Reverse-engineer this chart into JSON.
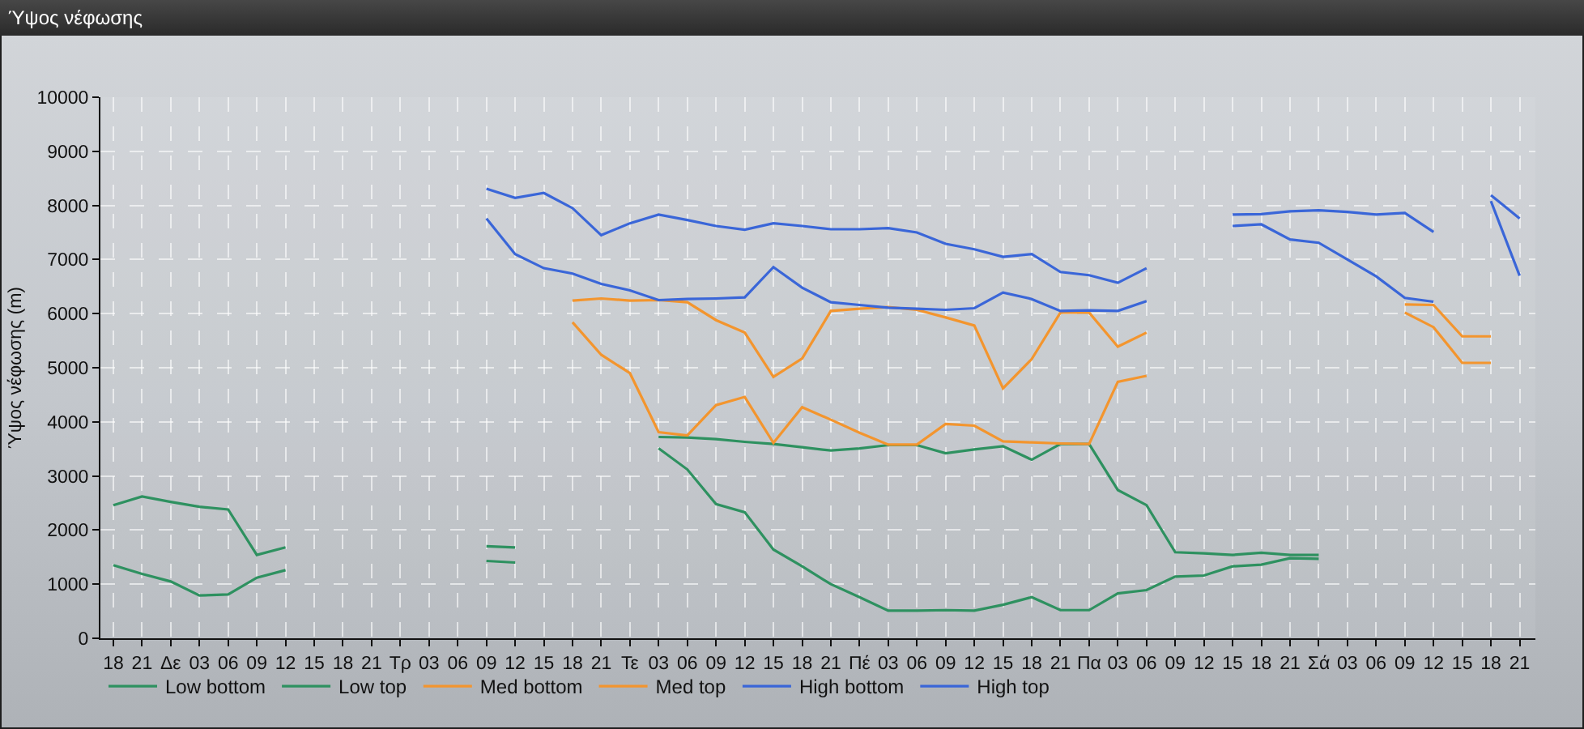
{
  "chart_data": {
    "type": "line",
    "title": "Ύψος νέφωσης",
    "ylabel": "Ύψος νέφωσης (m)",
    "categories": [
      "18",
      "21",
      "Δε",
      "03",
      "06",
      "09",
      "12",
      "15",
      "18",
      "21",
      "Τρ",
      "03",
      "06",
      "09",
      "12",
      "15",
      "18",
      "21",
      "Τε",
      "03",
      "06",
      "09",
      "12",
      "15",
      "18",
      "21",
      "Πέ",
      "03",
      "06",
      "09",
      "12",
      "15",
      "18",
      "21",
      "Πα",
      "03",
      "06",
      "09",
      "12",
      "15",
      "18",
      "21",
      "Σά",
      "03",
      "06",
      "09",
      "12",
      "15",
      "18",
      "21"
    ],
    "series": [
      {
        "name": "Low bottom",
        "color": "#2e9160",
        "values": [
          1350,
          1190,
          1050,
          790,
          810,
          1120,
          1260,
          null,
          null,
          null,
          null,
          null,
          null,
          1430,
          1400,
          null,
          null,
          null,
          null,
          3510,
          3120,
          2480,
          2330,
          1640,
          1330,
          1000,
          760,
          510,
          510,
          520,
          510,
          620,
          760,
          520,
          520,
          830,
          890,
          1140,
          1160,
          1330,
          1360,
          1480,
          1470,
          null,
          null,
          null,
          null,
          null,
          null,
          null
        ]
      },
      {
        "name": "Low top",
        "color": "#2e9160",
        "values": [
          2460,
          2620,
          2520,
          2430,
          2380,
          1540,
          1680,
          null,
          null,
          null,
          null,
          null,
          null,
          1700,
          1680,
          null,
          null,
          null,
          null,
          3720,
          3710,
          3680,
          3630,
          3590,
          3530,
          3470,
          3510,
          3570,
          3570,
          3420,
          3490,
          3550,
          3300,
          3590,
          3590,
          2740,
          2460,
          1590,
          1570,
          1540,
          1580,
          1540,
          1540,
          null,
          null,
          null,
          null,
          null,
          null,
          null
        ]
      },
      {
        "name": "Med bottom",
        "color": "#f3952e",
        "values": [
          null,
          null,
          null,
          null,
          null,
          null,
          null,
          null,
          null,
          null,
          null,
          null,
          null,
          null,
          null,
          null,
          5840,
          5240,
          4900,
          3810,
          3750,
          4310,
          4460,
          3610,
          4270,
          4040,
          3800,
          3580,
          3580,
          3960,
          3930,
          3640,
          3620,
          3600,
          3590,
          4740,
          4850,
          null,
          null,
          null,
          null,
          null,
          null,
          null,
          null,
          6020,
          5750,
          5090,
          5090,
          null
        ]
      },
      {
        "name": "Med top",
        "color": "#f3952e",
        "values": [
          null,
          null,
          null,
          null,
          null,
          null,
          null,
          null,
          null,
          null,
          null,
          null,
          null,
          null,
          null,
          null,
          6240,
          6280,
          6240,
          6250,
          6210,
          5880,
          5650,
          4830,
          5170,
          6050,
          6090,
          6120,
          6070,
          5930,
          5780,
          4620,
          5160,
          6020,
          6020,
          5390,
          5650,
          null,
          null,
          null,
          null,
          null,
          null,
          null,
          null,
          6170,
          6160,
          5580,
          5580,
          null
        ]
      },
      {
        "name": "High bottom",
        "color": "#3a66d8",
        "values": [
          null,
          null,
          null,
          null,
          null,
          null,
          null,
          null,
          null,
          null,
          null,
          null,
          null,
          7760,
          7100,
          6840,
          6740,
          6550,
          6430,
          6250,
          6270,
          6280,
          6300,
          6860,
          6480,
          6210,
          6160,
          6110,
          6090,
          6070,
          6100,
          6390,
          6270,
          6050,
          6060,
          6050,
          6230,
          null,
          null,
          7620,
          7650,
          7370,
          7310,
          7000,
          6690,
          6290,
          6220,
          null,
          8080,
          6700
        ]
      },
      {
        "name": "High top",
        "color": "#3a66d8",
        "values": [
          null,
          null,
          null,
          null,
          null,
          null,
          null,
          null,
          null,
          null,
          null,
          null,
          null,
          8310,
          8140,
          8230,
          7950,
          7450,
          7670,
          7830,
          7730,
          7620,
          7550,
          7670,
          7620,
          7560,
          7560,
          7580,
          7500,
          7290,
          7190,
          7050,
          7100,
          6770,
          6710,
          6570,
          6840,
          null,
          null,
          7830,
          7840,
          7890,
          7910,
          7880,
          7830,
          7860,
          7510,
          null,
          8190,
          7760
        ]
      }
    ],
    "ylim": [
      0,
      10000
    ],
    "yticks": [
      0,
      1000,
      2000,
      3000,
      4000,
      5000,
      6000,
      7000,
      8000,
      9000,
      10000
    ],
    "grid": true,
    "legend": "bottom left",
    "marker": "none",
    "line_style": "solid"
  }
}
